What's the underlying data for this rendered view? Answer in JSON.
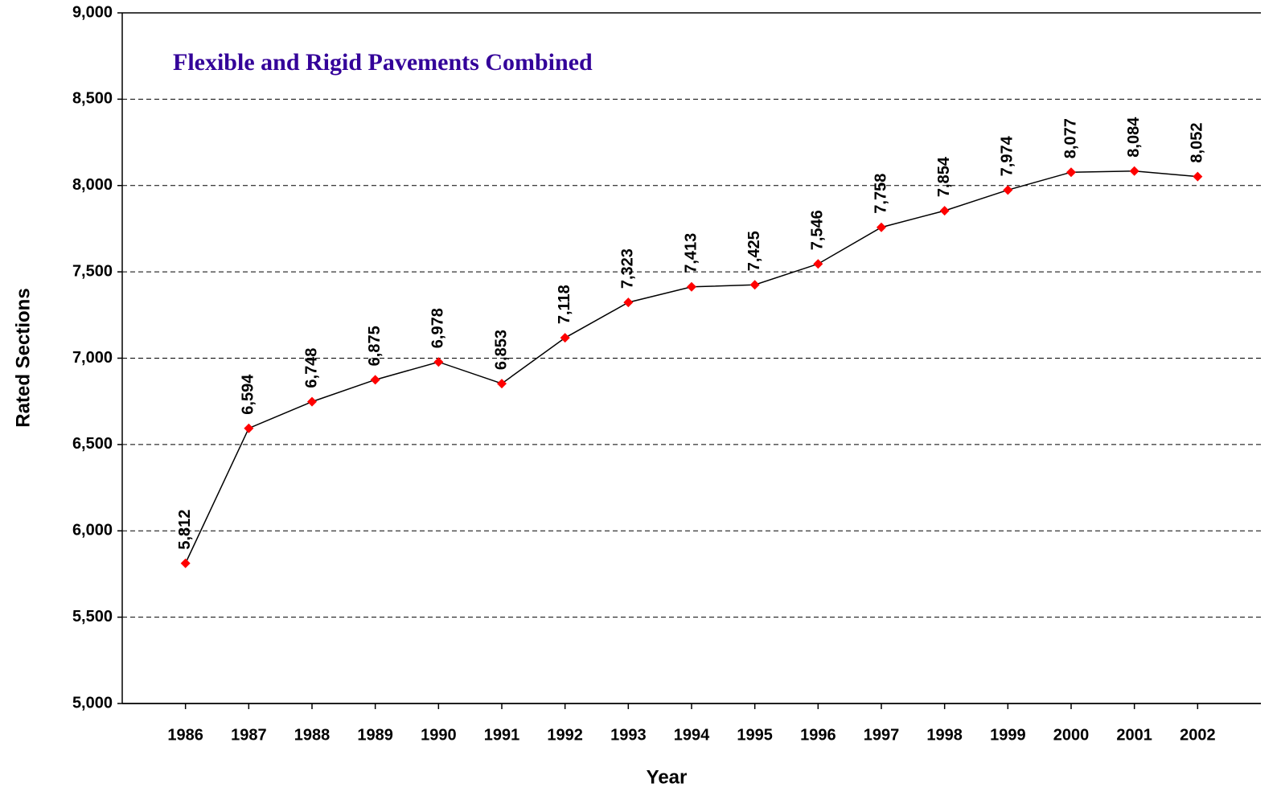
{
  "chart_data": {
    "type": "line",
    "title": "Flexible and Rigid Pavements Combined",
    "x_label": "Year",
    "y_label": "Rated Sections",
    "categories": [
      "1986",
      "1987",
      "1988",
      "1989",
      "1990",
      "1991",
      "1992",
      "1993",
      "1994",
      "1995",
      "1996",
      "1997",
      "1998",
      "1999",
      "2000",
      "2001",
      "2002"
    ],
    "series": [
      {
        "name": "Rated Sections",
        "color": "#ff0000",
        "line_color": "#000000",
        "values": [
          5812,
          6594,
          6748,
          6875,
          6978,
          6853,
          7118,
          7323,
          7413,
          7425,
          7546,
          7758,
          7854,
          7974,
          8077,
          8084,
          8052
        ],
        "value_labels": [
          "5,812",
          "6,594",
          "6,748",
          "6,875",
          "6,978",
          "6,853",
          "7,118",
          "7,323",
          "7,413",
          "7,425",
          "7,546",
          "7,758",
          "7,854",
          "7,974",
          "8,077",
          "8,084",
          "8,052"
        ]
      }
    ],
    "ylim": [
      5000,
      9000
    ],
    "yticks": [
      {
        "value": 5000,
        "label": "5,000"
      },
      {
        "value": 5500,
        "label": "5,500"
      },
      {
        "value": 6000,
        "label": "6,000"
      },
      {
        "value": 6500,
        "label": "6,500"
      },
      {
        "value": 7000,
        "label": "7,000"
      },
      {
        "value": 7500,
        "label": "7,500"
      },
      {
        "value": 8000,
        "label": "8,000"
      },
      {
        "value": 8500,
        "label": "8,500"
      },
      {
        "value": 9000,
        "label": "9,000"
      }
    ],
    "grid": true
  }
}
